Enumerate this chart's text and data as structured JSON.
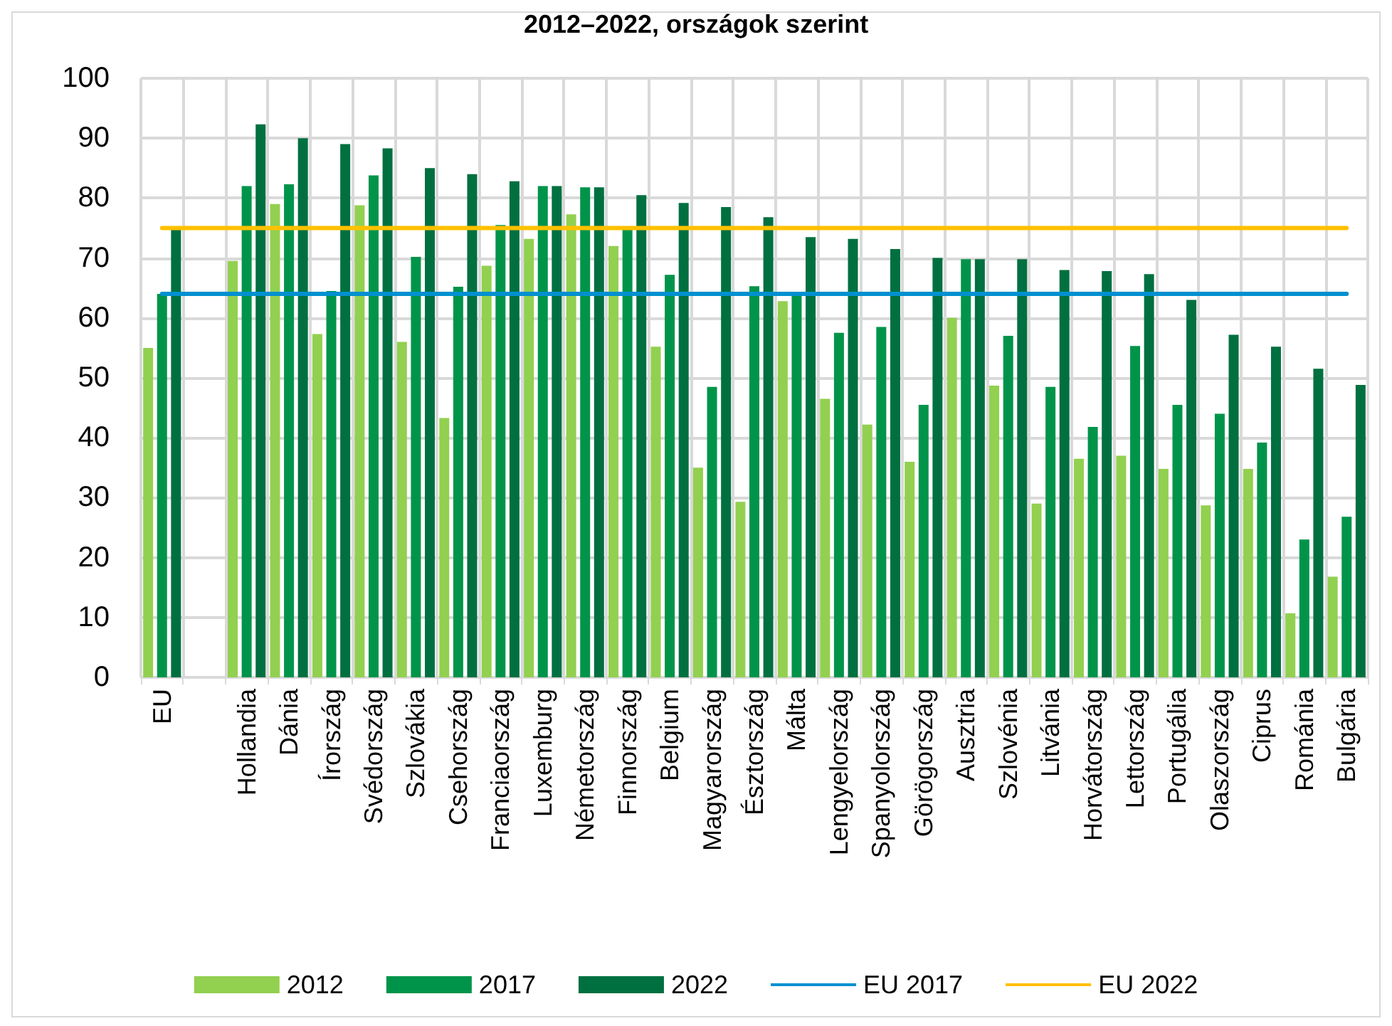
{
  "chart_data": {
    "type": "bar",
    "title": "2012–2022, országok szerint",
    "categories": [
      "EU",
      null,
      "Hollandia",
      "Dánia",
      "Írország",
      "Svédország",
      "Szlovákia",
      "Csehország",
      "Franciaország",
      "Luxemburg",
      "Németország",
      "Finnország",
      "Belgium",
      "Magyarország",
      "Észtország",
      "Málta",
      "Lengyelország",
      "Spanyolország",
      "Görögország",
      "Ausztria",
      "Szlovénia",
      "Litvánia",
      "Horvátország",
      "Lettország",
      "Portugália",
      "Olaszország",
      "Ciprus",
      "Románia",
      "Bulgária"
    ],
    "series": [
      {
        "name": "2012",
        "color": "#92d050",
        "values": [
          55,
          null,
          69.5,
          79,
          57.3,
          78.8,
          56,
          43.3,
          68.7,
          73.2,
          77.3,
          72,
          55.2,
          35,
          29.3,
          62.8,
          46.5,
          42.2,
          36,
          60,
          48.7,
          29,
          36.5,
          37,
          34.8,
          28.7,
          34.8,
          10.7,
          16.8
        ]
      },
      {
        "name": "2017",
        "color": "#00944a",
        "values": [
          64,
          null,
          82,
          82.3,
          64.5,
          83.8,
          70.2,
          65.2,
          75.5,
          82,
          81.8,
          75,
          67.2,
          48.5,
          65.3,
          64,
          57.5,
          58.5,
          45.5,
          69.8,
          57,
          48.5,
          41.8,
          55.3,
          45.5,
          44,
          39.2,
          23,
          26.8
        ]
      },
      {
        "name": "2022",
        "color": "#007040",
        "values": [
          75,
          null,
          92.3,
          90,
          89,
          88.3,
          85,
          84,
          82.8,
          82,
          81.8,
          80.5,
          79.2,
          78.5,
          76.8,
          73.5,
          73.2,
          71.5,
          70,
          69.8,
          69.8,
          68,
          67.8,
          67.3,
          63,
          57.2,
          55.2,
          51.5,
          48.8
        ]
      },
      {
        "name": "EU 2017",
        "type": "line",
        "color": "#0090d0",
        "values": [
          64,
          64,
          64,
          64,
          64,
          64,
          64,
          64,
          64,
          64,
          64,
          64,
          64,
          64,
          64,
          64,
          64,
          64,
          64,
          64,
          64,
          64,
          64,
          64,
          64,
          64,
          64,
          64,
          64
        ]
      },
      {
        "name": "EU 2022",
        "type": "line",
        "color": "#ffc000",
        "values": [
          75,
          75,
          75,
          75,
          75,
          75,
          75,
          75,
          75,
          75,
          75,
          75,
          75,
          75,
          75,
          75,
          75,
          75,
          75,
          75,
          75,
          75,
          75,
          75,
          75,
          75,
          75,
          75,
          75
        ]
      }
    ],
    "ylim": [
      0,
      100
    ],
    "yticks": [
      0,
      10,
      20,
      30,
      40,
      50,
      60,
      70,
      80,
      90,
      100
    ],
    "grid": true,
    "legend": "bottom",
    "marker": "none"
  }
}
